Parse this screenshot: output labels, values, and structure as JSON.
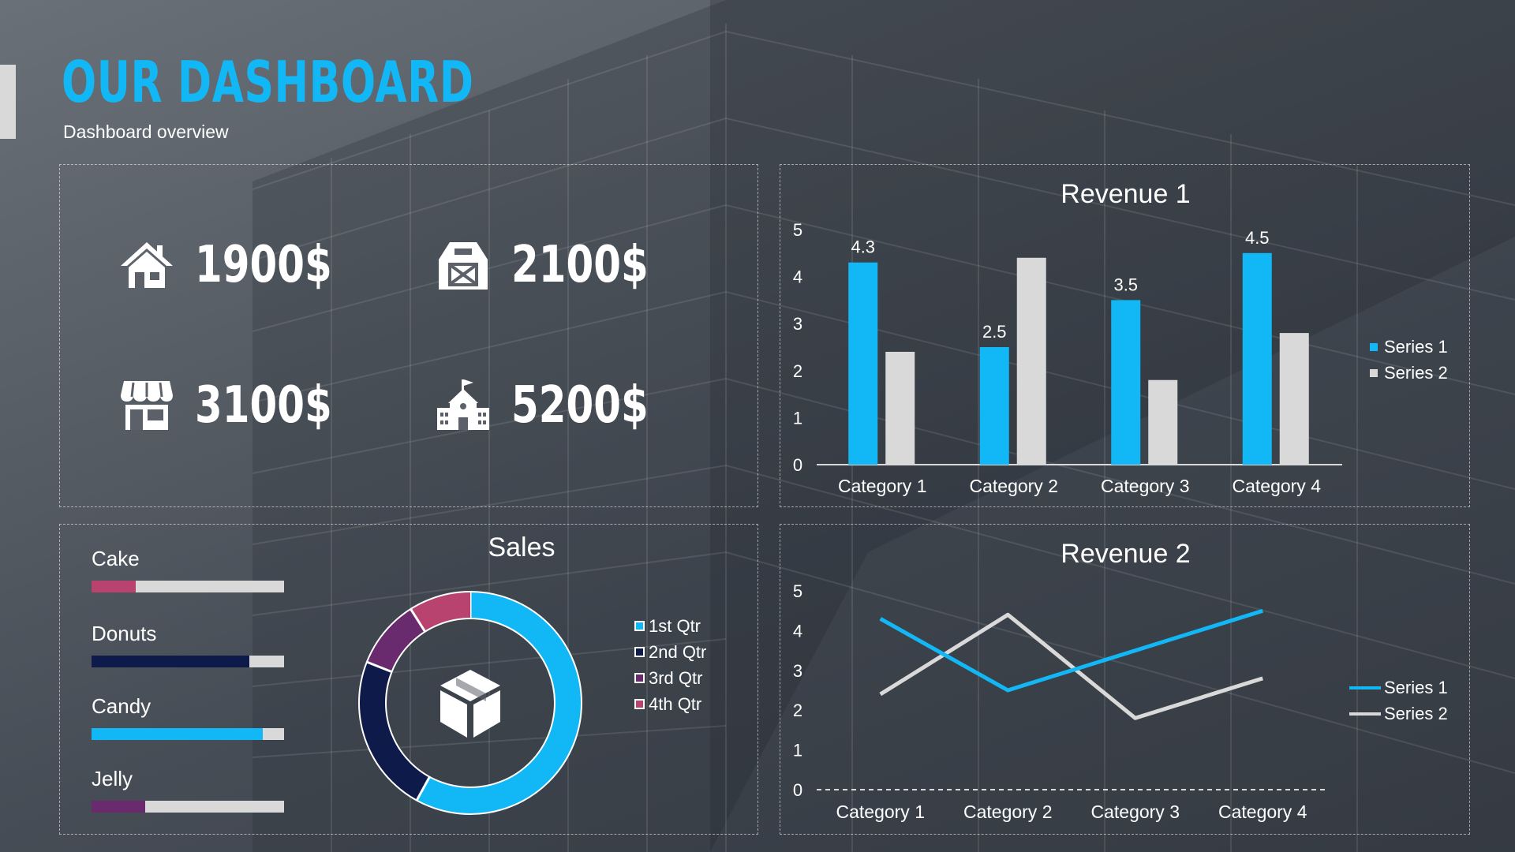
{
  "header": {
    "title": "OUR DASHBOARD",
    "subtitle": "Dashboard overview"
  },
  "colors": {
    "accent": "#12b8f5",
    "series2": "#d9d9d9",
    "navy": "#0e1a4a",
    "purple": "#6a2a6e",
    "rose": "#b8436e"
  },
  "kpis": [
    {
      "icon": "house-icon",
      "value": "1900$"
    },
    {
      "icon": "barn-icon",
      "value": "2100$"
    },
    {
      "icon": "storefront-icon",
      "value": "3100$"
    },
    {
      "icon": "school-building-icon",
      "value": "5200$"
    }
  ],
  "progress": [
    {
      "label": "Cake",
      "value": 0.23,
      "color": "#b8436e"
    },
    {
      "label": "Donuts",
      "value": 0.82,
      "color": "#0e1a4a"
    },
    {
      "label": "Candy",
      "value": 0.89,
      "color": "#12b8f5"
    },
    {
      "label": "Jelly",
      "value": 0.28,
      "color": "#6a2a6e"
    }
  ],
  "chart_data": [
    {
      "type": "bar",
      "title": "Revenue 1",
      "categories": [
        "Category 1",
        "Category 2",
        "Category 3",
        "Category 4"
      ],
      "series": [
        {
          "name": "Series 1",
          "values": [
            4.3,
            2.5,
            3.5,
            4.5
          ],
          "color": "#12b8f5",
          "data_labels": [
            "4.3",
            "2.5",
            "3.5",
            "4.5"
          ]
        },
        {
          "name": "Series 2",
          "values": [
            2.4,
            4.4,
            1.8,
            2.8
          ],
          "color": "#d9d9d9"
        }
      ],
      "ylim": [
        0,
        5
      ],
      "yticks": [
        "0",
        "1",
        "2",
        "3",
        "4",
        "5"
      ],
      "legend": "right"
    },
    {
      "type": "pie",
      "title": "Sales",
      "donut": true,
      "categories": [
        "1st Qtr",
        "2nd Qtr",
        "3rd Qtr",
        "4th Qtr"
      ],
      "values": [
        58,
        23,
        10,
        9
      ],
      "colors": [
        "#12b8f5",
        "#0e1a4a",
        "#6a2a6e",
        "#b8436e"
      ],
      "legend": "right",
      "center_icon": "box-icon"
    },
    {
      "type": "line",
      "title": "Revenue 2",
      "categories": [
        "Category 1",
        "Category 2",
        "Category 3",
        "Category 4"
      ],
      "series": [
        {
          "name": "Series 1",
          "values": [
            4.3,
            2.5,
            3.5,
            4.5
          ],
          "color": "#12b8f5"
        },
        {
          "name": "Series 2",
          "values": [
            2.4,
            4.4,
            1.8,
            2.8
          ],
          "color": "#d9d9d9"
        }
      ],
      "ylim": [
        0,
        5
      ],
      "yticks": [
        "0",
        "1",
        "2",
        "3",
        "4",
        "5"
      ],
      "legend": "right"
    }
  ]
}
